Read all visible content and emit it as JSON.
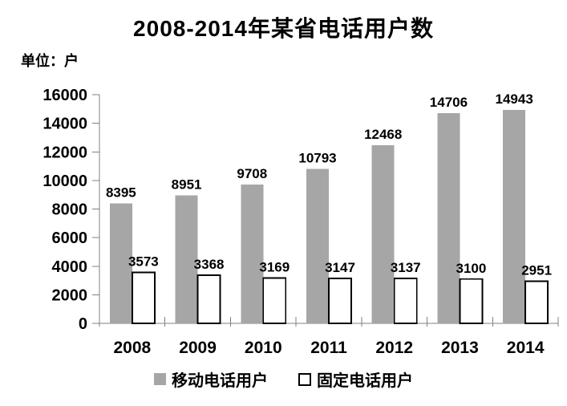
{
  "header": {
    "title": "2008-2014年某省电话用户数",
    "unit_label": "单位：户"
  },
  "chart_data": {
    "type": "bar",
    "title": "2008-2014年某省电话用户数",
    "unit": "单位：户",
    "categories": [
      "2008",
      "2009",
      "2010",
      "2011",
      "2012",
      "2013",
      "2014"
    ],
    "series": [
      {
        "name": "移动电话用户",
        "fill": "#A6A6A6",
        "stroke": "none",
        "values": [
          8395,
          8951,
          9708,
          10793,
          12468,
          14706,
          14943
        ]
      },
      {
        "name": "固定电话用户",
        "fill": "#FFFFFF",
        "stroke": "#000000",
        "values": [
          3573,
          3368,
          3169,
          3147,
          3137,
          3100,
          2951
        ]
      }
    ],
    "ylim": [
      0,
      16000
    ],
    "ytick_step": 2000,
    "ytick_labels": [
      "0",
      "2000",
      "4000",
      "6000",
      "8000",
      "10000",
      "12000",
      "14000",
      "16000"
    ],
    "grid": false,
    "data_labels": true,
    "legend_position": "bottom",
    "axis_color": "#808080"
  },
  "legend": {
    "items": [
      {
        "label": "移动电话用户"
      },
      {
        "label": "固定电话用户"
      }
    ]
  },
  "colors": {
    "bar_gray": "#A6A6A6",
    "bar_white": "#FFFFFF",
    "axis": "#808080",
    "text": "#000000",
    "background": "#FFFFFF"
  }
}
